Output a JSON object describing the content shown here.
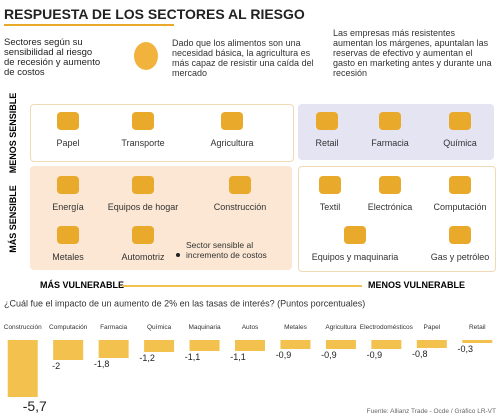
{
  "header": {
    "title": "RESPUESTA DE LOS SECTORES AL RIESGO",
    "intro": "Sectores según su sensibilidad al riesgo de recesión y aumento de costos",
    "note_food": "Dado que los alimentos son una necesidad básica, la agricultura es más capaz de resistir una caída del mercado",
    "note_resilient": "Las empresas más resistentes aumentan los márgenes, apuntalan las reservas de efectivo y aumentan el gasto en marketing antes y durante una recesión"
  },
  "matrix": {
    "rows": [
      "MENOS SENSIBLE",
      "MÁS SENSIBLE"
    ],
    "columns": [
      "MÁS VULNERABLE",
      "MENOS VULNERABLE"
    ],
    "cells": [
      [
        [
          "Papel",
          "Transporte",
          "Agricultura"
        ],
        [
          "Retail",
          "Farmacia",
          "Química"
        ]
      ],
      [
        [
          "Energía",
          "Equipos de hogar",
          "Construcción",
          "Metales",
          "Automotriz"
        ],
        [
          "Textil",
          "Electrónica",
          "Computación",
          "Equipos y maquinaria",
          "Gas y petróleo"
        ]
      ]
    ],
    "cost_note": "Sector sensible al incremento de costos"
  },
  "chart_data": {
    "type": "bar",
    "title": "¿Cuál fue el impacto de un aumento de 2% en las tasas de interés? (Puntos porcentuales)",
    "categories": [
      "Construcción",
      "Computación",
      "Farmacia",
      "Química",
      "Maquinaria",
      "Autos",
      "Metales",
      "Agricultura",
      "Electrodomésticos",
      "Papel",
      "Retail"
    ],
    "values": [
      -5.7,
      -2,
      -1.8,
      -1.2,
      -1.1,
      -1.1,
      -0.9,
      -0.9,
      -0.9,
      -0.8,
      -0.3
    ],
    "value_labels": [
      "-5,7",
      "-2",
      "-1,8",
      "-1,2",
      "-1,1",
      "-1,1",
      "-0,9",
      "-0,9",
      "-0,9",
      "-0,8",
      "-0,3"
    ],
    "color": "#f2c14e"
  },
  "source": "Fuente: Allianz Trade - Ocde / Gráfico LR-VT"
}
